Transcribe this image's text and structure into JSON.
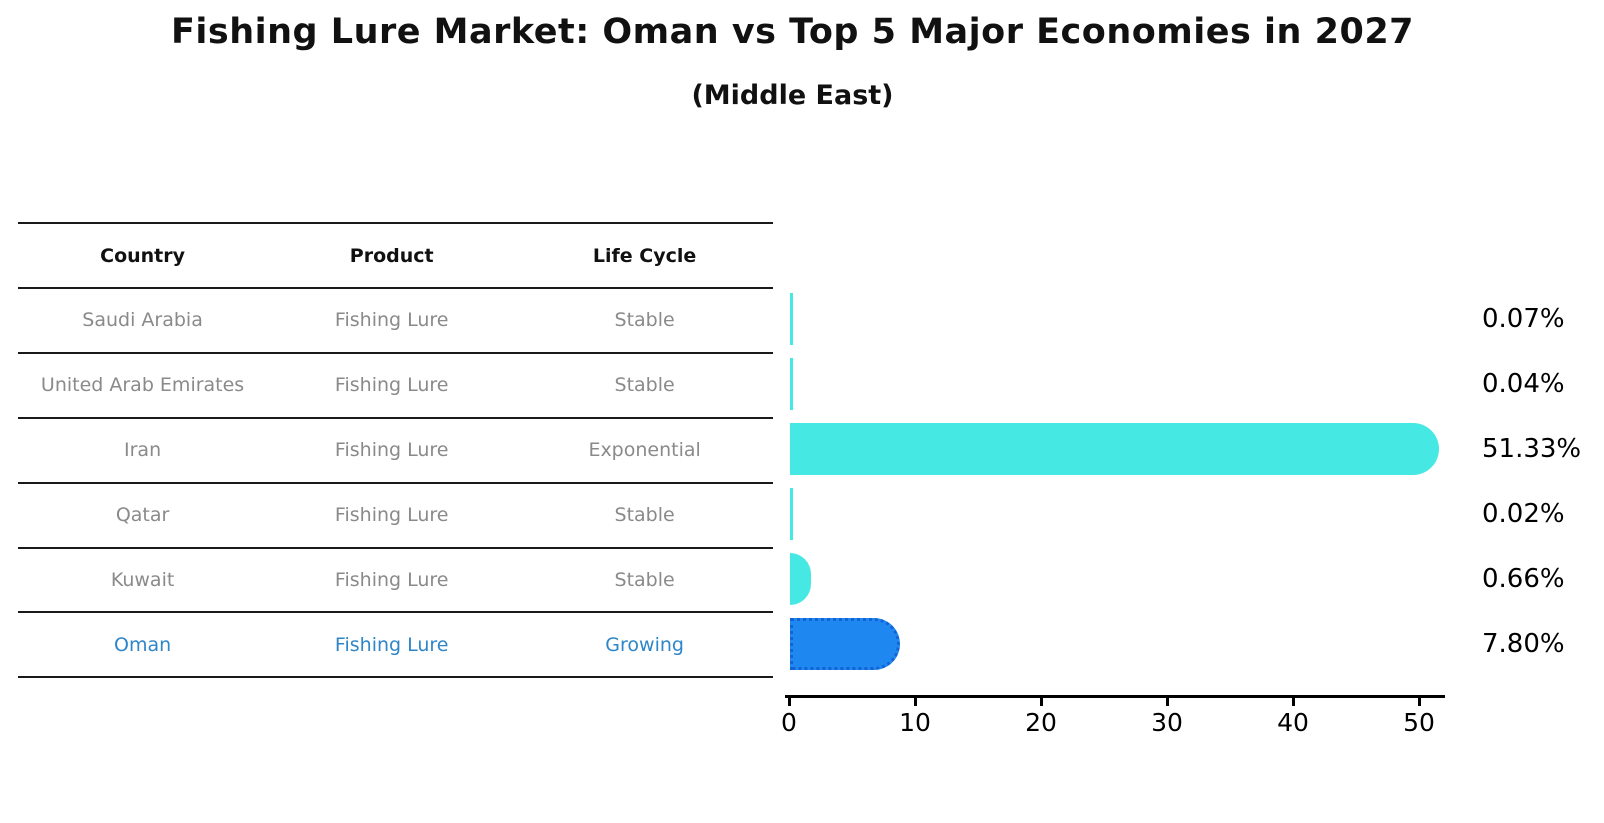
{
  "title": "Fishing Lure Market: Oman vs Top 5 Major Economies in 2027",
  "subtitle": "(Middle East)",
  "table": {
    "headers": [
      "Country",
      "Product",
      "Life Cycle"
    ],
    "rows": [
      {
        "country": "Saudi Arabia",
        "product": "Fishing Lure",
        "life_cycle": "Stable",
        "highlight": false
      },
      {
        "country": "United Arab Emirates",
        "product": "Fishing Lure",
        "life_cycle": "Stable",
        "highlight": false
      },
      {
        "country": "Iran",
        "product": "Fishing Lure",
        "life_cycle": "Exponential",
        "highlight": false
      },
      {
        "country": "Qatar",
        "product": "Fishing Lure",
        "life_cycle": "Stable",
        "highlight": false
      },
      {
        "country": "Kuwait",
        "product": "Fishing Lure",
        "life_cycle": "Stable",
        "highlight": false
      },
      {
        "country": "Oman",
        "product": "Fishing Lure",
        "life_cycle": "Growing",
        "highlight": true
      }
    ]
  },
  "chart_data": {
    "type": "bar",
    "orientation": "horizontal",
    "title": "Fishing Lure Market: Oman vs Top 5 Major Economies in 2027",
    "subtitle": "(Middle East)",
    "categories": [
      "Saudi Arabia",
      "United Arab Emirates",
      "Iran",
      "Qatar",
      "Kuwait",
      "Oman"
    ],
    "values": [
      0.07,
      0.04,
      51.33,
      0.02,
      0.66,
      7.8
    ],
    "value_labels": [
      "0.07%",
      "0.04%",
      "51.33%",
      "0.02%",
      "0.66%",
      "7.80%"
    ],
    "x_ticks": [
      0,
      10,
      20,
      30,
      40,
      50
    ],
    "xlim": [
      0,
      54
    ],
    "grid": false,
    "legend": false,
    "highlight_index": 5
  },
  "colors": {
    "bar": "#46e8e4",
    "highlight-bar": "#1e87f0",
    "highlight-border": "#1263d6",
    "highlight-text": "#2e86c8",
    "table-text": "#8a8a8a",
    "heading-text": "#111111",
    "line": "#1a1a1a"
  }
}
